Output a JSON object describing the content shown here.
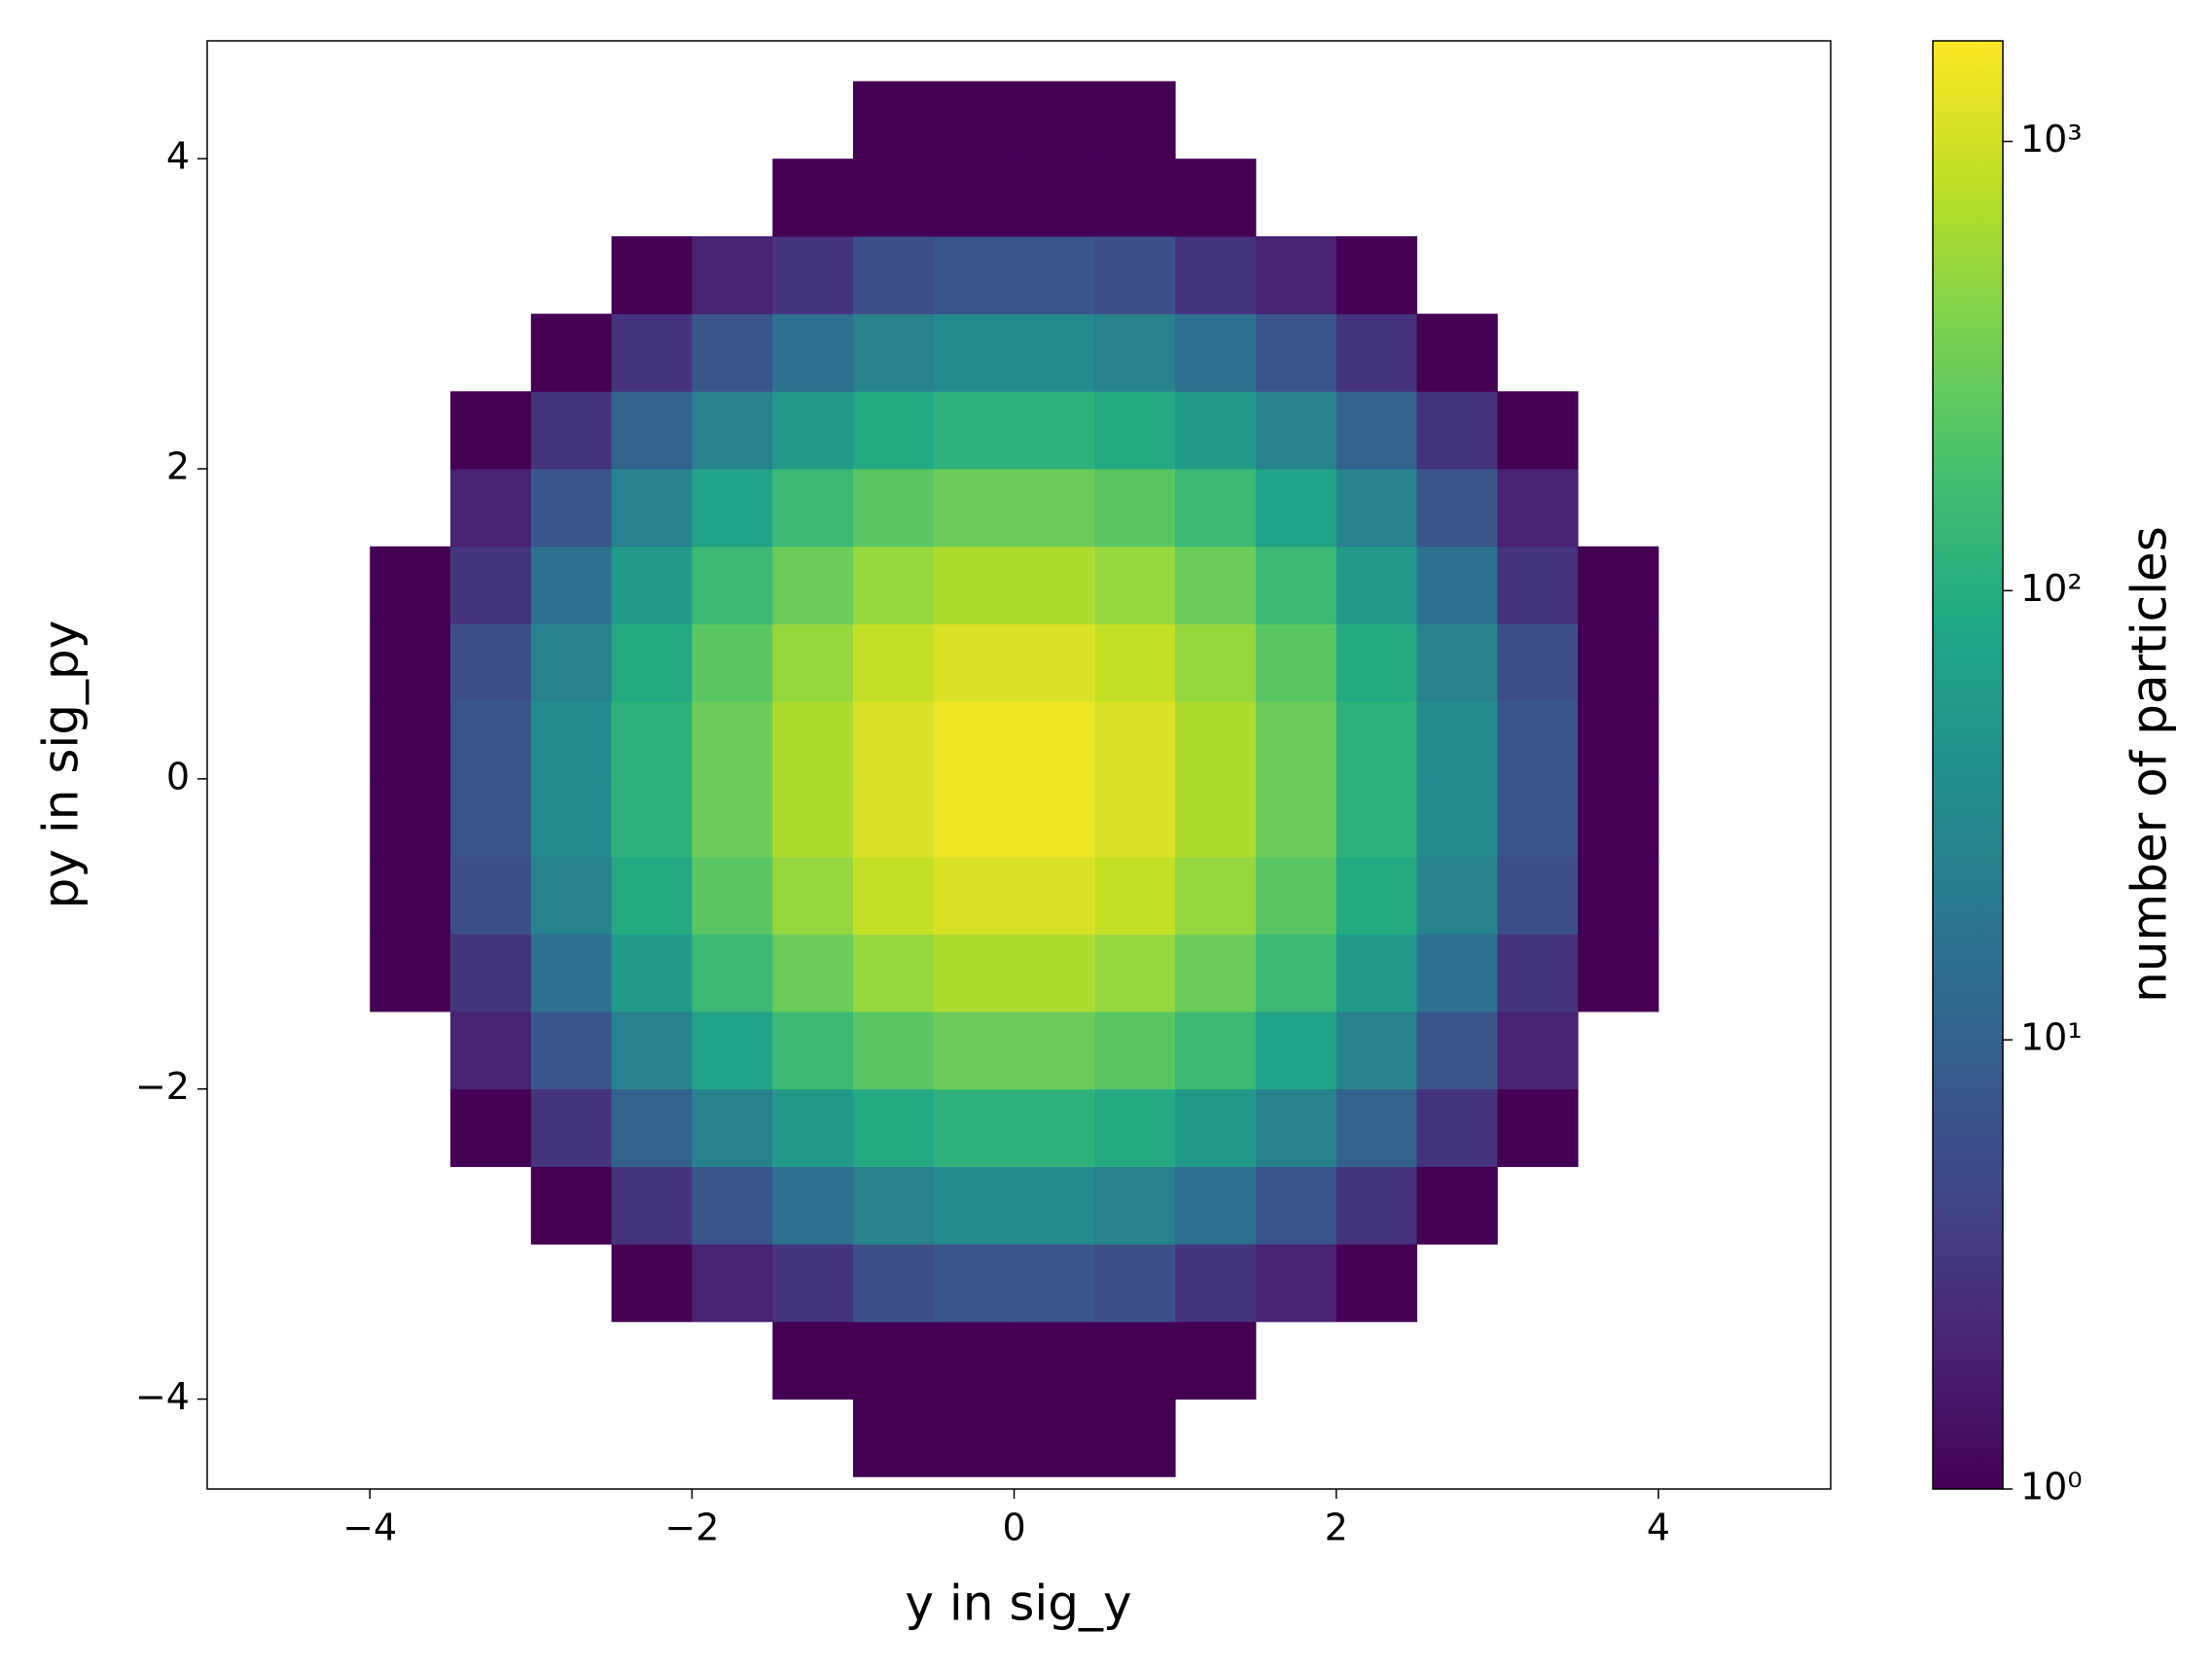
{
  "chart_data": {
    "type": "hist2d",
    "xlabel": "y in sig_y",
    "ylabel": "py in sig_py",
    "colorbar_label": "number of particles",
    "colormap": "viridis",
    "color_scale": "log",
    "xlim": [
      -5.01,
      5.07
    ],
    "ylim": [
      -4.58,
      4.76
    ],
    "clim": [
      1,
      1675
    ],
    "xticks": [
      {
        "value": -4,
        "label": "−4"
      },
      {
        "value": -2,
        "label": "−2"
      },
      0,
      2,
      4
    ],
    "yticks": [
      {
        "value": -4,
        "label": "−4"
      },
      {
        "value": -2,
        "label": "−2"
      },
      0,
      2,
      4
    ],
    "cticks": [
      {
        "value": 1,
        "label": "10⁰"
      },
      {
        "value": 10,
        "label": "10¹"
      },
      {
        "value": 100,
        "label": "10²"
      },
      {
        "value": 1000,
        "label": "10³"
      }
    ],
    "xbins": [
      -5,
      -4.5,
      -4,
      -3.5,
      -3,
      -2.5,
      -2,
      -1.5,
      -1,
      -0.5,
      0,
      0.5,
      1,
      1.5,
      2,
      2.5,
      3,
      3.5,
      4,
      4.5,
      5
    ],
    "ybins": [
      -4.5,
      -4,
      -3.5,
      -3,
      -2.5,
      -2,
      -1.5,
      -1,
      -0.5,
      0,
      0.5,
      1,
      1.5,
      2,
      2.5,
      3,
      3.5,
      4,
      4.5
    ],
    "values": [
      [
        null,
        null,
        null,
        null,
        null,
        null,
        null,
        null,
        1,
        1,
        1,
        1,
        null,
        null,
        null,
        null,
        null,
        null,
        null,
        null
      ],
      [
        null,
        null,
        null,
        null,
        null,
        null,
        null,
        1,
        1,
        1,
        1,
        1,
        1,
        null,
        null,
        null,
        null,
        null,
        null,
        null
      ],
      [
        null,
        null,
        null,
        null,
        null,
        1,
        2,
        3,
        6,
        7,
        7,
        6,
        3,
        2,
        1,
        null,
        null,
        null,
        null,
        null
      ],
      [
        null,
        null,
        null,
        null,
        1,
        3,
        7,
        16,
        26,
        33,
        33,
        26,
        16,
        7,
        3,
        1,
        null,
        null,
        null,
        null
      ],
      [
        null,
        null,
        null,
        1,
        3,
        10,
        26,
        55,
        90,
        116,
        116,
        90,
        55,
        26,
        10,
        3,
        1,
        null,
        null,
        null
      ],
      [
        null,
        null,
        null,
        2,
        7,
        26,
        70,
        148,
        245,
        314,
        314,
        245,
        148,
        70,
        26,
        7,
        2,
        null,
        null,
        null
      ],
      [
        null,
        null,
        1,
        3,
        16,
        55,
        148,
        315,
        519,
        666,
        666,
        519,
        315,
        148,
        55,
        16,
        3,
        1,
        null,
        null
      ],
      [
        null,
        null,
        1,
        6,
        26,
        90,
        245,
        519,
        855,
        1097,
        1097,
        855,
        519,
        245,
        90,
        26,
        6,
        1,
        null,
        null
      ],
      [
        null,
        null,
        1,
        7,
        33,
        116,
        314,
        666,
        1097,
        1408,
        1408,
        1097,
        666,
        314,
        116,
        33,
        7,
        1,
        null,
        null
      ],
      [
        null,
        null,
        1,
        7,
        33,
        116,
        314,
        666,
        1097,
        1408,
        1408,
        1097,
        666,
        314,
        116,
        33,
        7,
        1,
        null,
        null
      ],
      [
        null,
        null,
        1,
        6,
        26,
        90,
        245,
        519,
        855,
        1097,
        1097,
        855,
        519,
        245,
        90,
        26,
        6,
        1,
        null,
        null
      ],
      [
        null,
        null,
        1,
        3,
        16,
        55,
        148,
        315,
        519,
        666,
        666,
        519,
        315,
        148,
        55,
        16,
        3,
        1,
        null,
        null
      ],
      [
        null,
        null,
        null,
        2,
        7,
        26,
        70,
        148,
        245,
        314,
        314,
        245,
        148,
        70,
        26,
        7,
        2,
        null,
        null,
        null
      ],
      [
        null,
        null,
        null,
        1,
        3,
        10,
        26,
        55,
        90,
        116,
        116,
        90,
        55,
        26,
        10,
        3,
        1,
        null,
        null,
        null
      ],
      [
        null,
        null,
        null,
        null,
        1,
        3,
        7,
        16,
        26,
        33,
        33,
        26,
        16,
        7,
        3,
        1,
        null,
        null,
        null,
        null
      ],
      [
        null,
        null,
        null,
        null,
        null,
        1,
        2,
        3,
        6,
        7,
        7,
        6,
        3,
        2,
        1,
        null,
        null,
        null,
        null,
        null
      ],
      [
        null,
        null,
        null,
        null,
        null,
        null,
        null,
        1,
        1,
        1,
        1,
        1,
        1,
        null,
        null,
        null,
        null,
        null,
        null,
        null
      ],
      [
        null,
        null,
        null,
        null,
        null,
        null,
        null,
        null,
        1,
        1,
        1,
        1,
        null,
        null,
        null,
        null,
        null,
        null,
        null,
        null
      ]
    ]
  }
}
